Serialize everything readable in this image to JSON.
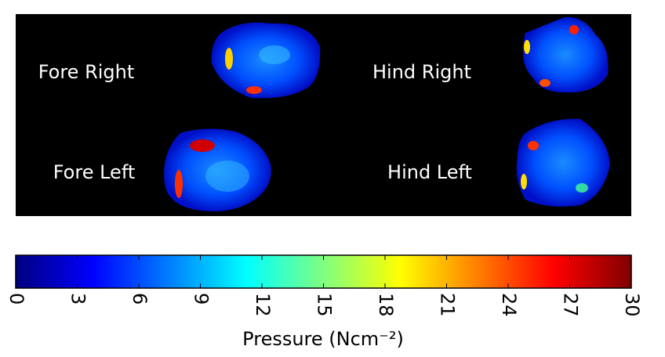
{
  "chart_data": {
    "type": "heatmap",
    "panels": [
      {
        "label": "Fore Right"
      },
      {
        "label": "Hind Right"
      },
      {
        "label": "Fore Left"
      },
      {
        "label": "Hind Left"
      }
    ],
    "colorbar": {
      "label": "Pressure (Ncm⁻²)",
      "xlim": [
        0,
        30
      ],
      "xticks": [
        0,
        3,
        6,
        9,
        12,
        15,
        18,
        21,
        24,
        27,
        30
      ],
      "colormap": "jet"
    }
  }
}
